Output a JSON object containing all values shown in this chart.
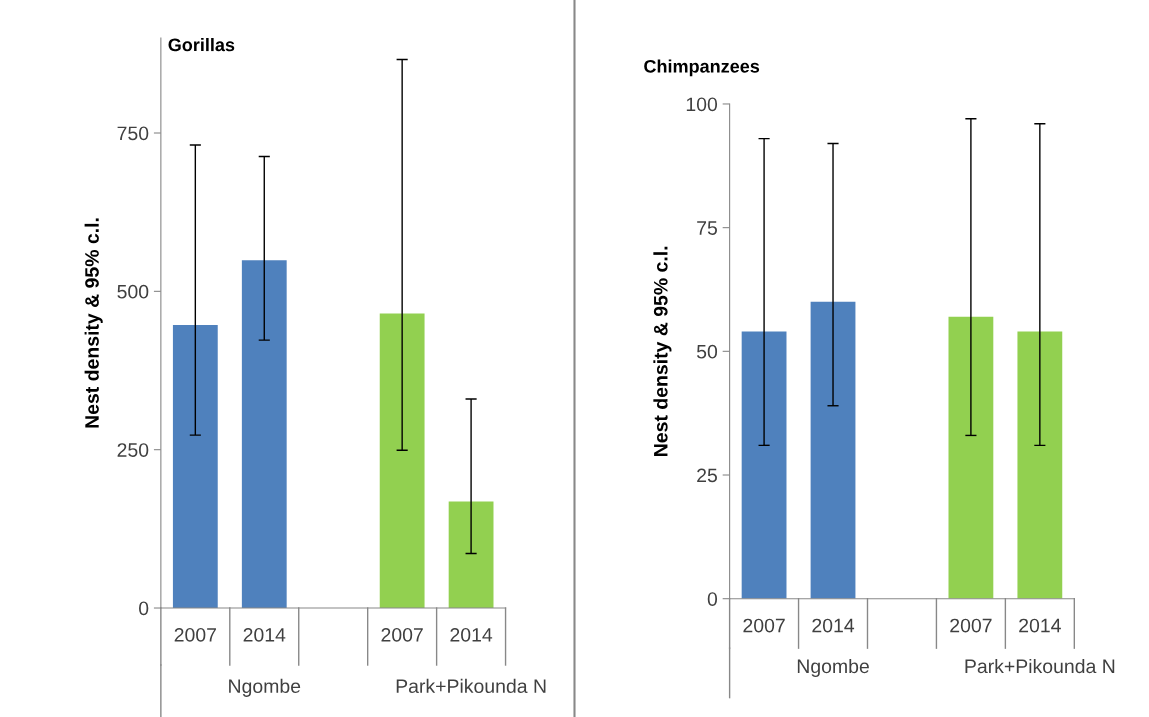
{
  "chart_data": [
    {
      "type": "bar",
      "title": "Gorillas",
      "ylabel": "Nest density & 95% c.l.",
      "categories": [
        "2007",
        "2014",
        null,
        "2007",
        "2014"
      ],
      "values": [
        447,
        549,
        null,
        465,
        168
      ],
      "colors": [
        "#4f81bd",
        "#4f81bd",
        null,
        "#92d050",
        "#92d050"
      ],
      "errors": [
        [
          273,
          731
        ],
        [
          423,
          713
        ],
        null,
        [
          249,
          866
        ],
        [
          86,
          330
        ]
      ],
      "annotations": [
        "Ngombe",
        "Park+Pikounda N"
      ],
      "ylim": [
        0,
        900
      ],
      "yticks": [
        0,
        250,
        500,
        750
      ],
      "grid": false,
      "legend": false
    },
    {
      "type": "bar",
      "title": "Chimpanzees",
      "ylabel": "Nest density & 95% c.l.",
      "categories": [
        "2007",
        "2014",
        null,
        "2007",
        "2014"
      ],
      "values": [
        54,
        60,
        null,
        57,
        54
      ],
      "colors": [
        "#4f81bd",
        "#4f81bd",
        null,
        "#92d050",
        "#92d050"
      ],
      "errors": [
        [
          31,
          93
        ],
        [
          39,
          92
        ],
        null,
        [
          33,
          97
        ],
        [
          31,
          96
        ]
      ],
      "annotations": [
        "Ngombe",
        "Park+Pikounda N"
      ],
      "ylim": [
        0,
        100
      ],
      "yticks": [
        0,
        25,
        50,
        75,
        100
      ],
      "grid": false,
      "legend": false
    }
  ]
}
